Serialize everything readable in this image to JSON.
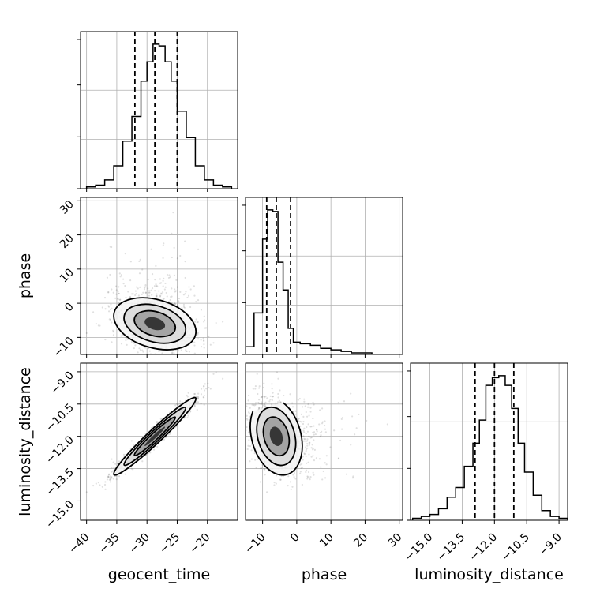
{
  "chart_data": {
    "type": "corner",
    "parameters": [
      "geocent_time",
      "phase",
      "luminosity_distance"
    ],
    "axis_labels": {
      "x": [
        "geocent_time",
        "phase",
        "luminosity_distance"
      ],
      "y": [
        "",
        "phase",
        "luminosity_distance"
      ]
    },
    "grid": true,
    "ranges": {
      "geocent_time": [
        -41,
        -15
      ],
      "phase": [
        -15,
        31
      ],
      "luminosity_distance": [
        -15.9,
        -8.6
      ]
    },
    "ticks": {
      "geocent_time": [
        -40,
        -35,
        -30,
        -25,
        -20
      ],
      "phase": [
        -10,
        0,
        10,
        20,
        30
      ],
      "luminosity_distance": [
        -15.0,
        -13.5,
        -12.0,
        -10.5,
        -9.0
      ]
    },
    "tick_labels": {
      "geocent_time": [
        "−40",
        "−35",
        "−30",
        "−25",
        "−20"
      ],
      "phase": [
        "−10",
        "0",
        "10",
        "20",
        "30"
      ],
      "luminosity_distance": [
        "−15.0",
        "−13.5",
        "−12.0",
        "−10.5",
        "−9.0"
      ]
    },
    "quantiles": {
      "geocent_time": [
        -32.0,
        -28.7,
        -25.0
      ],
      "phase": [
        -8.8,
        -6.0,
        -1.8
      ],
      "luminosity_distance": [
        -12.9,
        -12.0,
        -11.1
      ]
    },
    "histograms": {
      "geocent_time": {
        "edges": [
          -40,
          -38.5,
          -37,
          -35.5,
          -34,
          -32.5,
          -31,
          -30,
          -29,
          -28,
          -27,
          -26,
          -25,
          -23.5,
          -22,
          -20.5,
          -19,
          -17.5,
          -16
        ],
        "counts": [
          1,
          2,
          5,
          13,
          27,
          41,
          61,
          72,
          82,
          81,
          72,
          61,
          44,
          29,
          13,
          5,
          2,
          1
        ]
      },
      "phase": {
        "edges": [
          -15,
          -12.5,
          -10,
          -8.5,
          -7,
          -5.5,
          -4,
          -2.5,
          -1,
          1,
          4,
          7,
          10,
          13,
          16,
          19,
          22
        ],
        "counts": [
          5,
          27,
          75,
          94,
          93,
          60,
          42,
          17,
          8,
          7,
          6,
          4,
          3,
          2,
          1,
          1
        ]
      },
      "luminosity_distance": {
        "edges": [
          -15.8,
          -15.4,
          -15.0,
          -14.6,
          -14.2,
          -13.8,
          -13.4,
          -13.0,
          -12.7,
          -12.4,
          -12.1,
          -11.8,
          -11.5,
          -11.2,
          -10.9,
          -10.6,
          -10.2,
          -9.8,
          -9.4,
          -9.0,
          -8.6
        ],
        "counts": [
          1,
          2,
          3,
          6,
          12,
          17,
          28,
          40,
          52,
          70,
          74,
          75,
          70,
          58,
          40,
          25,
          13,
          5,
          2,
          1
        ]
      }
    },
    "correlations": {
      "geocent_time|phase": -0.3,
      "geocent_time|luminosity_distance": 0.97,
      "phase|luminosity_distance": -0.25
    }
  }
}
